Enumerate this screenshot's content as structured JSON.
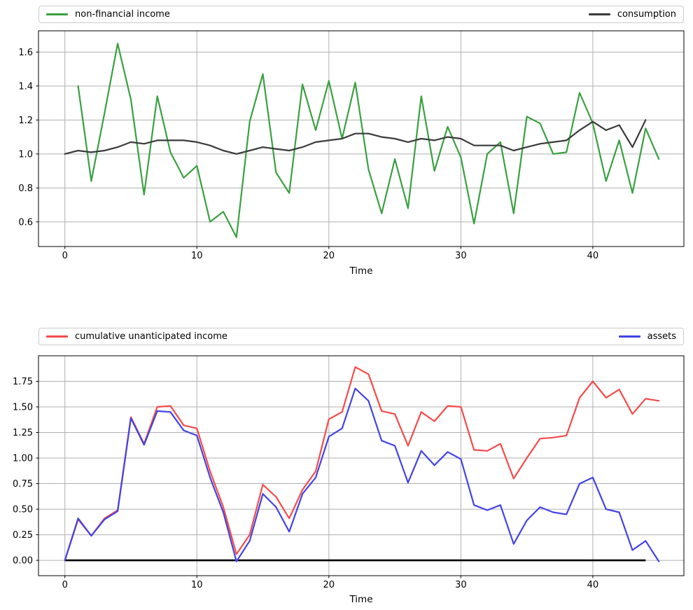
{
  "figure": {
    "background": "#ffffff",
    "xlabel": "Time"
  },
  "chart_data": [
    {
      "type": "line",
      "title": "",
      "xlabel": "Time",
      "ylabel": "",
      "grid": true,
      "legend_position": "expanded bar above plot, items at far left and far right",
      "xlim": [
        -2.0,
        46.9
      ],
      "ylim": [
        0.455,
        1.725
      ],
      "xticks": [
        0,
        10,
        20,
        30,
        40
      ],
      "xtick_labels": [
        "0",
        "10",
        "20",
        "30",
        "40"
      ],
      "yticks": [
        0.6,
        0.8,
        1.0,
        1.2,
        1.4,
        1.6
      ],
      "ytick_labels": [
        "0.6",
        "0.8",
        "1.0",
        "1.2",
        "1.4",
        "1.6"
      ],
      "series": [
        {
          "name": "non-financial income",
          "color": "#3aa040",
          "x_start": 1,
          "values": [
            1.4,
            0.84,
            1.24,
            1.65,
            1.32,
            0.76,
            1.34,
            1.01,
            0.86,
            0.93,
            0.6,
            0.66,
            0.51,
            1.19,
            1.47,
            0.89,
            0.77,
            1.41,
            1.14,
            1.43,
            1.09,
            1.42,
            0.91,
            0.65,
            0.97,
            0.68,
            1.34,
            0.9,
            1.16,
            0.98,
            0.59,
            1.0,
            1.07,
            0.65,
            1.22,
            1.18,
            1.0,
            1.01,
            1.36,
            1.18,
            0.84,
            1.08,
            0.77,
            1.15,
            0.97
          ]
        },
        {
          "name": "consumption",
          "color": "#3b3b3b",
          "x_start": 0,
          "values": [
            1.0,
            1.02,
            1.01,
            1.02,
            1.04,
            1.07,
            1.06,
            1.08,
            1.08,
            1.08,
            1.07,
            1.05,
            1.02,
            1.0,
            1.02,
            1.04,
            1.03,
            1.02,
            1.04,
            1.07,
            1.08,
            1.09,
            1.12,
            1.12,
            1.1,
            1.09,
            1.07,
            1.09,
            1.08,
            1.1,
            1.09,
            1.05,
            1.05,
            1.05,
            1.02,
            1.04,
            1.06,
            1.07,
            1.08,
            1.14,
            1.19,
            1.14,
            1.17,
            1.04,
            1.2
          ]
        }
      ]
    },
    {
      "type": "line",
      "title": "",
      "xlabel": "Time",
      "ylabel": "",
      "grid": true,
      "legend_position": "expanded bar above plot, items at far left and far right",
      "xlim": [
        -2.0,
        46.9
      ],
      "ylim": [
        -0.15,
        2.0
      ],
      "xticks": [
        0,
        10,
        20,
        30,
        40
      ],
      "xtick_labels": [
        "0",
        "10",
        "20",
        "30",
        "40"
      ],
      "yticks": [
        0.0,
        0.25,
        0.5,
        0.75,
        1.0,
        1.25,
        1.5,
        1.75
      ],
      "ytick_labels": [
        "0.00",
        "0.25",
        "0.50",
        "0.75",
        "1.00",
        "1.25",
        "1.50",
        "1.75"
      ],
      "baseline": {
        "y": 0,
        "x_from": 0,
        "x_to": 44,
        "color": "#000000",
        "width": 2.6
      },
      "series": [
        {
          "name": "cumulative unanticipated income",
          "color": "#f54a4a",
          "x_start": 0,
          "values": [
            0.0,
            0.4,
            0.24,
            0.41,
            0.49,
            1.4,
            1.14,
            1.5,
            1.51,
            1.32,
            1.29,
            0.87,
            0.52,
            0.06,
            0.25,
            0.74,
            0.62,
            0.41,
            0.69,
            0.87,
            1.38,
            1.45,
            1.89,
            1.82,
            1.46,
            1.43,
            1.12,
            1.45,
            1.36,
            1.51,
            1.5,
            1.08,
            1.07,
            1.14,
            0.8,
            1.0,
            1.19,
            1.2,
            1.22,
            1.59,
            1.75,
            1.59,
            1.67,
            1.43,
            1.58,
            1.56
          ]
        },
        {
          "name": "assets",
          "color": "#4343e5",
          "x_start": 0,
          "values": [
            0.0,
            0.41,
            0.24,
            0.4,
            0.48,
            1.39,
            1.13,
            1.46,
            1.45,
            1.27,
            1.22,
            0.81,
            0.47,
            -0.01,
            0.19,
            0.65,
            0.52,
            0.28,
            0.65,
            0.81,
            1.21,
            1.29,
            1.68,
            1.56,
            1.17,
            1.12,
            0.76,
            1.07,
            0.93,
            1.06,
            0.99,
            0.54,
            0.49,
            0.54,
            0.16,
            0.39,
            0.52,
            0.47,
            0.45,
            0.75,
            0.81,
            0.5,
            0.47,
            0.1,
            0.19,
            -0.01
          ]
        }
      ]
    }
  ],
  "style": {
    "grid_color": "#b0b0b0",
    "frame_color": "#000000",
    "tick_text_color": "#000000",
    "line_width": 2.2
  }
}
